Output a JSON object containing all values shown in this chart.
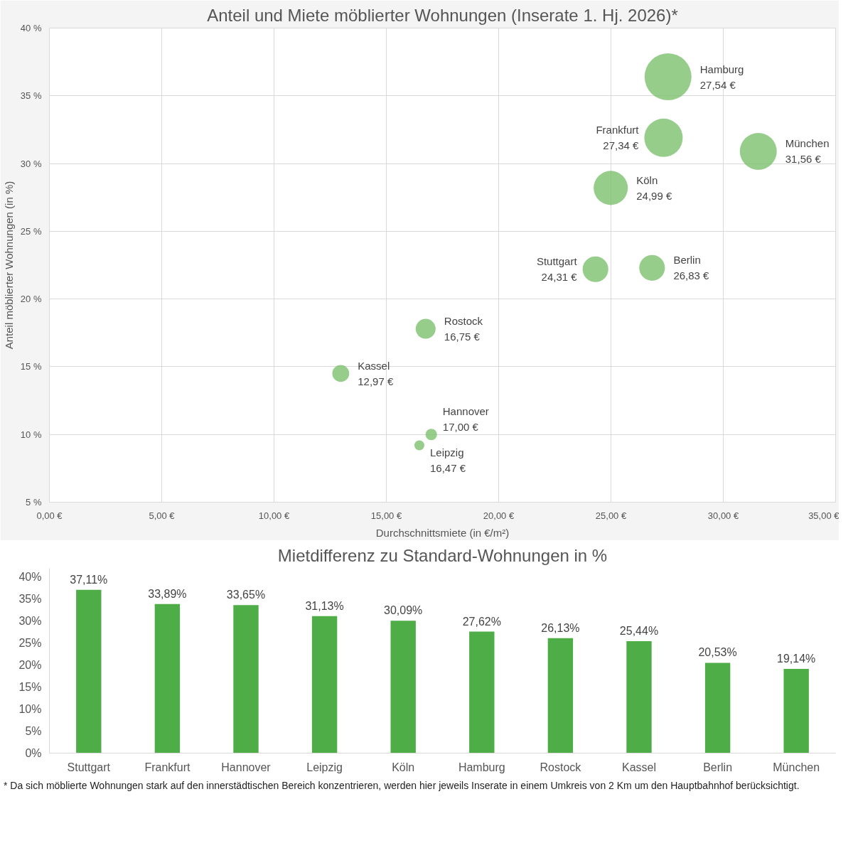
{
  "chart_data": [
    {
      "type": "bubble",
      "title": "Anteil und Miete möblierter Wohnungen (Inserate 1. Hj. 2026)*",
      "xlabel": "Durchschnittsmiete (in €/m²)",
      "ylabel": "Anteil möblierter Wohnungen (in %)",
      "x": [
        27.54,
        27.34,
        31.56,
        24.99,
        24.31,
        26.83,
        16.75,
        12.97,
        17.0,
        16.47
      ],
      "series": [
        {
          "color": "#7cc16e",
          "values": [
            36.4,
            31.9,
            30.9,
            28.2,
            22.2,
            22.3,
            17.8,
            14.5,
            10.0,
            9.2
          ],
          "sizes": [
            1,
            0.67,
            0.62,
            0.53,
            0.3,
            0.3,
            0.18,
            0.13,
            0.06,
            0.045
          ]
        }
      ],
      "xlim": [
        0,
        35
      ],
      "ylim": [
        5,
        40
      ],
      "xticks": [
        {
          "value": 0,
          "label": "0,00 €"
        },
        {
          "value": 5,
          "label": "5,00 €"
        },
        {
          "value": 10,
          "label": "10,00 €"
        },
        {
          "value": 15,
          "label": "15,00 €"
        },
        {
          "value": 20,
          "label": "20,00 €"
        },
        {
          "value": 25,
          "label": "25,00 €"
        },
        {
          "value": 30,
          "label": "30,00 €"
        },
        {
          "value": 35,
          "label": "35,00 €"
        }
      ],
      "yticks": [
        {
          "value": 5,
          "label": "5 %"
        },
        {
          "value": 10,
          "label": "10 %"
        },
        {
          "value": 15,
          "label": "15 %"
        },
        {
          "value": 20,
          "label": "20 %"
        },
        {
          "value": 25,
          "label": "25 %"
        },
        {
          "value": 30,
          "label": "30 %"
        },
        {
          "value": 35,
          "label": "35 %"
        },
        {
          "value": 40,
          "label": "40 %"
        }
      ],
      "grid": true,
      "annotations": [
        {
          "text": "Hamburg\n27,54 €",
          "x": 27.54,
          "y": 36.4
        },
        {
          "text": "Frankfurt\n27,34 €",
          "x": 27.34,
          "y": 31.9
        },
        {
          "text": "München\n31,56 €",
          "x": 31.56,
          "y": 30.9
        },
        {
          "text": "Köln\n24,99 €",
          "x": 24.99,
          "y": 28.2
        },
        {
          "text": "Stuttgart\n24,31 €",
          "x": 24.31,
          "y": 22.2
        },
        {
          "text": "Berlin\n26,83 €",
          "x": 26.83,
          "y": 22.3
        },
        {
          "text": "Rostock\n16,75 €",
          "x": 16.75,
          "y": 17.8
        },
        {
          "text": "Kassel\n12,97 €",
          "x": 12.97,
          "y": 14.5
        },
        {
          "text": "Hannover\n17,00 €",
          "x": 17.0,
          "y": 10.0
        },
        {
          "text": "Leipzig\n16,47 €",
          "x": 16.47,
          "y": 9.2
        }
      ]
    },
    {
      "type": "bar",
      "title": "Mietdifferenz zu Standard-Wohnungen in %",
      "categories": [
        "Stuttgart",
        "Frankfurt",
        "Hannover",
        "Leipzig",
        "Köln",
        "Hamburg",
        "Rostock",
        "Kassel",
        "Berlin",
        "München"
      ],
      "values": [
        37.11,
        33.89,
        33.65,
        31.13,
        30.09,
        27.62,
        26.13,
        25.44,
        20.53,
        19.14
      ],
      "value_labels": [
        "37,11%",
        "33,89%",
        "33,65%",
        "31,13%",
        "30,09%",
        "27,62%",
        "26,13%",
        "25,44%",
        "20,53%",
        "19,14%"
      ],
      "color": "#4fad48",
      "ylim": [
        0,
        42
      ],
      "yticks": [
        {
          "value": 0,
          "label": "0%"
        },
        {
          "value": 5,
          "label": "5%"
        },
        {
          "value": 10,
          "label": "10%"
        },
        {
          "value": 15,
          "label": "15%"
        },
        {
          "value": 20,
          "label": "20%"
        },
        {
          "value": 25,
          "label": "25%"
        },
        {
          "value": 30,
          "label": "30%"
        },
        {
          "value": 35,
          "label": "35%"
        },
        {
          "value": 40,
          "label": "40%"
        }
      ],
      "grid": false,
      "annotations": [
        "* Da sich möblierte Wohnungen stark auf den innerstädtischen Bereich konzentrieren, werden hier jeweils Inserate in einem Umkreis von 2 Km um den Hauptbahnhof berücksichtigt."
      ]
    }
  ]
}
